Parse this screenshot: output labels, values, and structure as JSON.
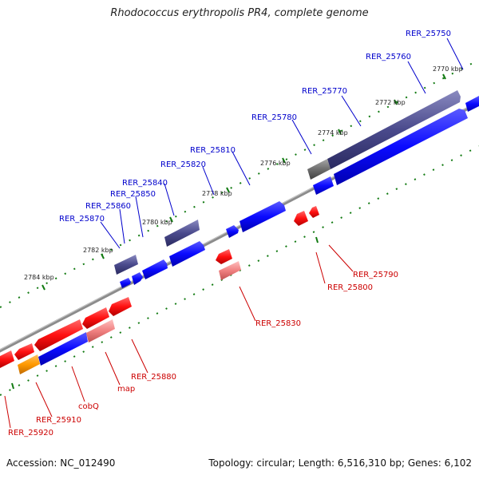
{
  "title": "Rhodococcus erythropolis PR4, complete genome",
  "footer": {
    "accession": "Accession: NC_012490",
    "info": "Topology: circular; Length: 6,516,310 bp; Genes: 6,102"
  },
  "colors": {
    "backbone": "#8c8c8c",
    "forward_cds": "#0a0aff",
    "forward_gene": "#4a4a8c",
    "reverse_cds": "#ff1010",
    "reverse_gene": "#f08080",
    "other_gene": "#ff9900",
    "pseudo": "#6e6e6e",
    "tick": "#117a11",
    "forward_label": "#0000cc",
    "reverse_label": "#cc0000"
  },
  "scale": [
    "2770 kbp",
    "2772 kbp",
    "2774 kbp",
    "2776 kbp",
    "2778 kbp",
    "2780 kbp",
    "2782 kbp",
    "2784 kbp"
  ],
  "forward_labels": [
    "RER_25750",
    "RER_25760",
    "RER_25770",
    "RER_25780",
    "RER_25810",
    "RER_25820",
    "RER_25840",
    "RER_25850",
    "RER_25860",
    "RER_25870"
  ],
  "reverse_labels": [
    "RER_25790",
    "RER_25800",
    "RER_25830",
    "RER_25880",
    "map",
    "cobQ",
    "RER_25910",
    "RER_25920"
  ]
}
